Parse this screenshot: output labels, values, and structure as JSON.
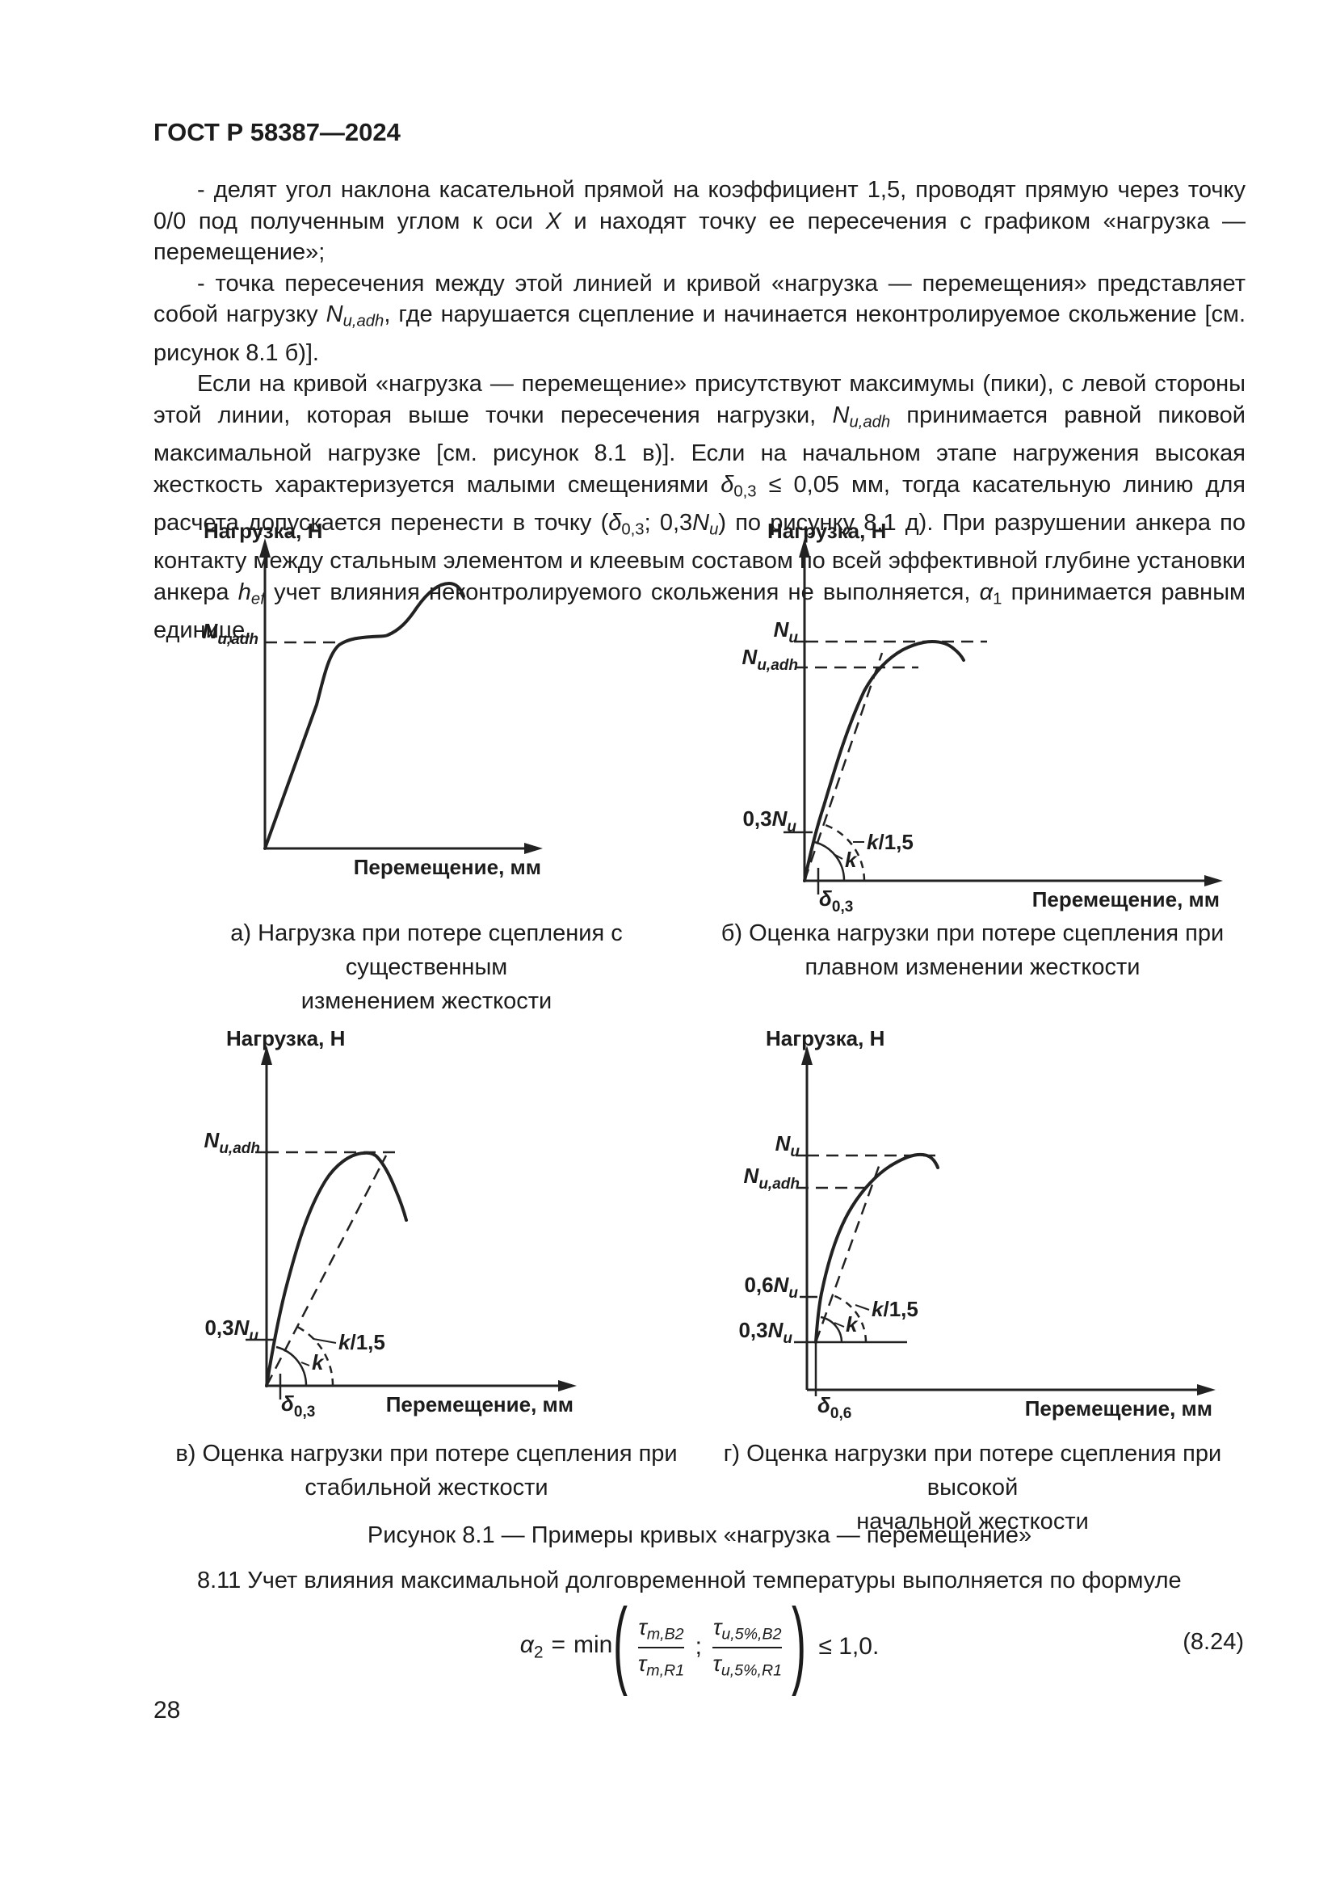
{
  "page": {
    "header": "ГОСТ Р 58387—2024",
    "number": "28"
  },
  "body": {
    "p1": [
      {
        "t": "- делят угол наклона касательной прямой на коэффициент 1,5, проводят прямую через точку 0/0 под полученным углом к оси "
      },
      {
        "i": "X"
      },
      {
        "t": " и находят точку ее пересечения с графиком «нагрузка — перемещение»;"
      }
    ],
    "p2": [
      {
        "t": "- точка пересечения между этой линией и кривой «нагрузка — перемещения» представляет собой нагрузку "
      },
      {
        "i": "N"
      },
      {
        "isub": "u,adh"
      },
      {
        "t": ", где нарушается сцепление и начинается неконтролируемое скольжение [см. рисунок 8.1 б)]."
      }
    ],
    "p3": [
      {
        "t": "Если на кривой «нагрузка — перемещение» присутствуют максимумы (пики), с левой стороны этой линии, которая выше точки пересечения нагрузки, "
      },
      {
        "i": "N"
      },
      {
        "isub": "u,adh"
      },
      {
        "t": " принимается равной пиковой максимальной нагрузке [см. рисунок 8.1 в)]. Если на начальном этапе нагружения высокая жесткость характеризуется малыми смещениями "
      },
      {
        "i": "δ"
      },
      {
        "sub": "0,3"
      },
      {
        "t": " ≤ 0,05 мм, тогда касательную линию для расчета допускается перенести в точку ("
      },
      {
        "i": "δ"
      },
      {
        "sub": "0,3"
      },
      {
        "t": "; 0,3"
      },
      {
        "i": "N"
      },
      {
        "isub": "u"
      },
      {
        "t": ") по рисунку 8.1 д). При разрушении анкера по контакту между стальным элементом и клеевым составом по всей эффективной глубине установки анкера "
      },
      {
        "i": "h"
      },
      {
        "isub": "ef"
      },
      {
        "t": " учет влияния неконтролируемого скольжения не выполняется, "
      },
      {
        "i": "α"
      },
      {
        "sub": "1"
      },
      {
        "t": " принимается равным единице."
      }
    ],
    "s811": [
      {
        "t": "8.11 Учет влияния максимальной долговременной температуры выполняется по формуле"
      }
    ]
  },
  "figure": {
    "title": "Рисунок 8.1 — Примеры кривых «нагрузка — перемещение»",
    "captions": {
      "a1": "а) Нагрузка при потере сцепления с существенным",
      "a2": "изменением жесткости",
      "b1": "б) Оценка нагрузки при потере сцепления при",
      "b2": "плавном изменении жесткости",
      "v1": "в) Оценка нагрузки при потере сцепления при",
      "v2": "стабильной жесткости",
      "g1": "г) Оценка нагрузки при потере сцепления при высокой",
      "g2": "начальной жесткости"
    },
    "lbl": {
      "load_axis": "Нагрузка, Н",
      "disp_axis": "Перемещение, мм",
      "N": "N",
      "u": "u",
      "uadh": "u,adh",
      "pre03": "0,3",
      "pre06": "0,6",
      "k": "k",
      "k15_suffix": "/1,5",
      "delta": "δ",
      "d03": "0,3",
      "d06": "0,6"
    }
  },
  "formula": {
    "alpha": "α",
    "alpha_sub": "2",
    "equals": "=",
    "min": "min",
    "open_paren": "(",
    "close_paren": ")",
    "semicolon": ";",
    "frac1_num": [
      {
        "i": "τ"
      },
      {
        "isub": "m,B2"
      }
    ],
    "frac1_den": [
      {
        "i": "τ"
      },
      {
        "isub": "m,R1"
      }
    ],
    "frac2_num": [
      {
        "i": "τ"
      },
      {
        "isub": "u,5%,B2"
      }
    ],
    "frac2_den": [
      {
        "i": "τ"
      },
      {
        "isub": "u,5%,R1"
      }
    ],
    "leq": "≤ 1,0.",
    "number": "(8.24)"
  }
}
